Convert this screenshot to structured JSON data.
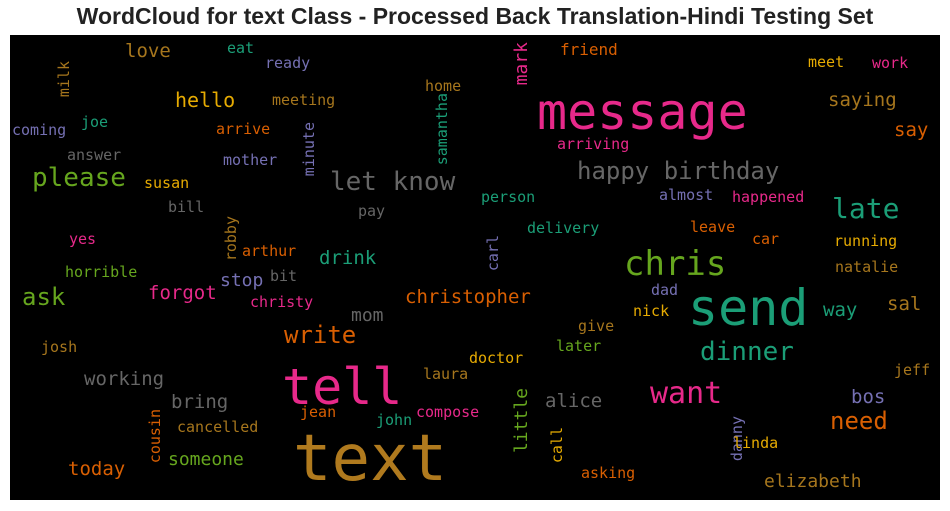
{
  "title": "WordCloud for text Class - Processed Back Translation-Hindi Testing Set",
  "words": [
    {
      "text": "text",
      "color": "#b07a1e"
    },
    {
      "text": "message",
      "color": "#e7298a"
    },
    {
      "text": "tell",
      "color": "#e7298a"
    },
    {
      "text": "send",
      "color": "#1b9e77"
    },
    {
      "text": "chris",
      "color": "#66a61e"
    },
    {
      "text": "let know",
      "color": "#666666"
    },
    {
      "text": "please",
      "color": "#66a61e"
    },
    {
      "text": "happy birthday",
      "color": "#666666"
    },
    {
      "text": "late",
      "color": "#1b9e77"
    },
    {
      "text": "dinner",
      "color": "#1b9e77"
    },
    {
      "text": "want",
      "color": "#e7298a"
    },
    {
      "text": "write",
      "color": "#d95f02"
    },
    {
      "text": "need",
      "color": "#d95f02"
    },
    {
      "text": "ask",
      "color": "#66a61e"
    },
    {
      "text": "hello",
      "color": "#e6ab02"
    },
    {
      "text": "love",
      "color": "#a6761d"
    },
    {
      "text": "saying",
      "color": "#a6761d"
    },
    {
      "text": "christopher",
      "color": "#d95f02"
    },
    {
      "text": "forgot",
      "color": "#e7298a"
    },
    {
      "text": "working",
      "color": "#666666"
    },
    {
      "text": "bring",
      "color": "#666666"
    },
    {
      "text": "alice",
      "color": "#666666"
    },
    {
      "text": "someone",
      "color": "#66a61e"
    },
    {
      "text": "today",
      "color": "#d95f02"
    },
    {
      "text": "elizabeth",
      "color": "#a6761d"
    },
    {
      "text": "drink",
      "color": "#1b9e77"
    },
    {
      "text": "stop",
      "color": "#7570b3"
    },
    {
      "text": "mom",
      "color": "#666666"
    },
    {
      "text": "way",
      "color": "#1b9e77"
    },
    {
      "text": "sal",
      "color": "#a6761d"
    },
    {
      "text": "say",
      "color": "#d95f02"
    },
    {
      "text": "bos",
      "color": "#7570b3"
    },
    {
      "text": "mark",
      "color": "#e7298a"
    },
    {
      "text": "little",
      "color": "#66a61e"
    },
    {
      "text": "friend",
      "color": "#d95f02"
    },
    {
      "text": "eat",
      "color": "#1b9e77"
    },
    {
      "text": "ready",
      "color": "#7570b3"
    },
    {
      "text": "meet",
      "color": "#e6ab02"
    },
    {
      "text": "work",
      "color": "#e7298a"
    },
    {
      "text": "milk",
      "color": "#a6761d"
    },
    {
      "text": "meeting",
      "color": "#a6761d"
    },
    {
      "text": "home",
      "color": "#a6761d"
    },
    {
      "text": "samantha",
      "color": "#1b9e77"
    },
    {
      "text": "joe",
      "color": "#1b9e77"
    },
    {
      "text": "arrive",
      "color": "#d95f02"
    },
    {
      "text": "coming",
      "color": "#7570b3"
    },
    {
      "text": "minute",
      "color": "#7570b3"
    },
    {
      "text": "arriving",
      "color": "#e7298a"
    },
    {
      "text": "answer",
      "color": "#666666"
    },
    {
      "text": "mother",
      "color": "#7570b3"
    },
    {
      "text": "susan",
      "color": "#e6ab02"
    },
    {
      "text": "person",
      "color": "#1b9e77"
    },
    {
      "text": "almost",
      "color": "#7570b3"
    },
    {
      "text": "happened",
      "color": "#e7298a"
    },
    {
      "text": "bill",
      "color": "#666666"
    },
    {
      "text": "pay",
      "color": "#666666"
    },
    {
      "text": "robby",
      "color": "#a6761d"
    },
    {
      "text": "delivery",
      "color": "#1b9e77"
    },
    {
      "text": "leave",
      "color": "#d95f02"
    },
    {
      "text": "yes",
      "color": "#e7298a"
    },
    {
      "text": "arthur",
      "color": "#d95f02"
    },
    {
      "text": "carl",
      "color": "#7570b3"
    },
    {
      "text": "car",
      "color": "#d95f02"
    },
    {
      "text": "running",
      "color": "#e6ab02"
    },
    {
      "text": "horrible",
      "color": "#66a61e"
    },
    {
      "text": "bit",
      "color": "#666666"
    },
    {
      "text": "natalie",
      "color": "#a6761d"
    },
    {
      "text": "christy",
      "color": "#e7298a"
    },
    {
      "text": "dad",
      "color": "#7570b3"
    },
    {
      "text": "nick",
      "color": "#e6ab02"
    },
    {
      "text": "give",
      "color": "#a6761d"
    },
    {
      "text": "josh",
      "color": "#a6761d"
    },
    {
      "text": "later",
      "color": "#66a61e"
    },
    {
      "text": "doctor",
      "color": "#e6ab02"
    },
    {
      "text": "laura",
      "color": "#a6761d"
    },
    {
      "text": "jeff",
      "color": "#a6761d"
    },
    {
      "text": "jean",
      "color": "#d95f02"
    },
    {
      "text": "john",
      "color": "#1b9e77"
    },
    {
      "text": "compose",
      "color": "#e7298a"
    },
    {
      "text": "cousin",
      "color": "#d95f02"
    },
    {
      "text": "cancelled",
      "color": "#a6761d"
    },
    {
      "text": "call",
      "color": "#e6ab02"
    },
    {
      "text": "danny",
      "color": "#7570b3"
    },
    {
      "text": "linda",
      "color": "#e6ab02"
    },
    {
      "text": "asking",
      "color": "#d95f02"
    }
  ]
}
